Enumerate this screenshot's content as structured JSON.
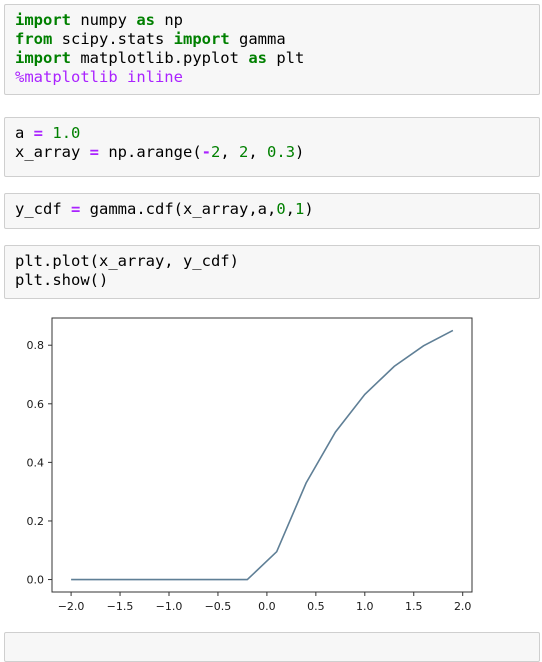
{
  "cells": [
    {
      "lines": [
        [
          {
            "t": "import",
            "c": "kw"
          },
          {
            "t": " numpy "
          },
          {
            "t": "as",
            "c": "kw"
          },
          {
            "t": " np"
          }
        ],
        [
          {
            "t": "from",
            "c": "kw"
          },
          {
            "t": " scipy.stats "
          },
          {
            "t": "import",
            "c": "kw"
          },
          {
            "t": " gamma"
          }
        ],
        [
          {
            "t": "import",
            "c": "kw"
          },
          {
            "t": " matplotlib.pyplot "
          },
          {
            "t": "as",
            "c": "kw"
          },
          {
            "t": " plt"
          }
        ],
        [
          {
            "t": "%matplotlib inline",
            "c": "mg"
          }
        ]
      ]
    },
    {
      "lines": [
        [
          {
            "t": "a "
          },
          {
            "t": "=",
            "c": "op"
          },
          {
            "t": " "
          },
          {
            "t": "1.0",
            "c": "num"
          }
        ],
        [
          {
            "t": "x_array "
          },
          {
            "t": "=",
            "c": "op"
          },
          {
            "t": " np.arange("
          },
          {
            "t": "-",
            "c": "op"
          },
          {
            "t": "2",
            "c": "num"
          },
          {
            "t": ", "
          },
          {
            "t": "2",
            "c": "num"
          },
          {
            "t": ", "
          },
          {
            "t": "0.3",
            "c": "num"
          },
          {
            "t": ")"
          }
        ]
      ]
    },
    {
      "lines": [
        [
          {
            "t": "y_cdf "
          },
          {
            "t": "=",
            "c": "op"
          },
          {
            "t": " gamma.cdf(x_array,a,"
          },
          {
            "t": "0",
            "c": "num"
          },
          {
            "t": ","
          },
          {
            "t": "1",
            "c": "num"
          },
          {
            "t": ")"
          }
        ]
      ]
    },
    {
      "lines": [
        [
          {
            "t": "plt.plot(x_array, y_cdf)"
          }
        ],
        [
          {
            "t": "plt.show()"
          }
        ]
      ]
    }
  ],
  "chart_data": {
    "type": "line",
    "x": [
      -2.0,
      -1.7,
      -1.4,
      -1.1,
      -0.8,
      -0.5,
      -0.2,
      0.1,
      0.4,
      0.7,
      1.0,
      1.3,
      1.6,
      1.9
    ],
    "y": [
      0.0,
      0.0,
      0.0,
      0.0,
      0.0,
      0.0,
      0.0,
      0.0952,
      0.3297,
      0.5034,
      0.6321,
      0.7275,
      0.7981,
      0.8504
    ],
    "xlim": [
      -2.195,
      2.095
    ],
    "ylim": [
      -0.0425,
      0.8929
    ],
    "xticks": [
      -2.0,
      -1.5,
      -1.0,
      -0.5,
      0.0,
      0.5,
      1.0,
      1.5,
      2.0
    ],
    "xtick_labels": [
      "−2.0",
      "−1.5",
      "−1.0",
      "−0.5",
      "0.0",
      "0.5",
      "1.0",
      "1.5",
      "2.0"
    ],
    "yticks": [
      0.0,
      0.2,
      0.4,
      0.6,
      0.8
    ],
    "ytick_labels": [
      "0.0",
      "0.2",
      "0.4",
      "0.6",
      "0.8"
    ],
    "line_color": "#5f7f96",
    "grid": false
  }
}
